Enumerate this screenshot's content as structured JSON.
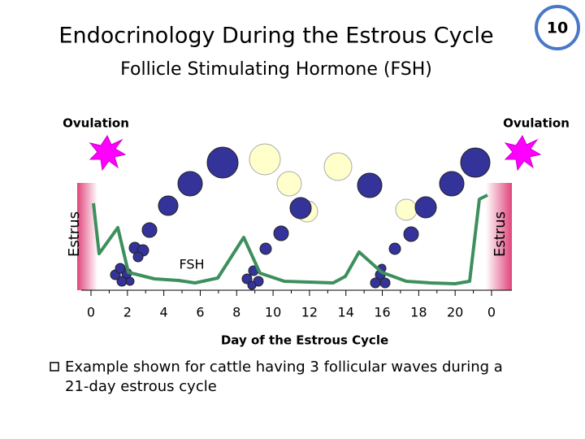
{
  "slide_number": "10",
  "title": "Endocrinology During the Estrous Cycle",
  "subtitle": "Follicle Stimulating Hormone (FSH)",
  "diagram": {
    "ovulation_left": "Ovulation",
    "ovulation_right": "Ovulation",
    "estrus_left": "Estrus",
    "estrus_right": "Estrus",
    "hormone_label": "FSH",
    "x_ticks": [
      "0",
      "2",
      "4",
      "6",
      "8",
      "10",
      "12",
      "14",
      "16",
      "18",
      "20",
      "0"
    ],
    "x_label": "Day of the Estrous Cycle"
  },
  "bullet": [
    "Example shown for cattle having 3 follicular waves during a",
    "21-day estrous cycle"
  ]
}
